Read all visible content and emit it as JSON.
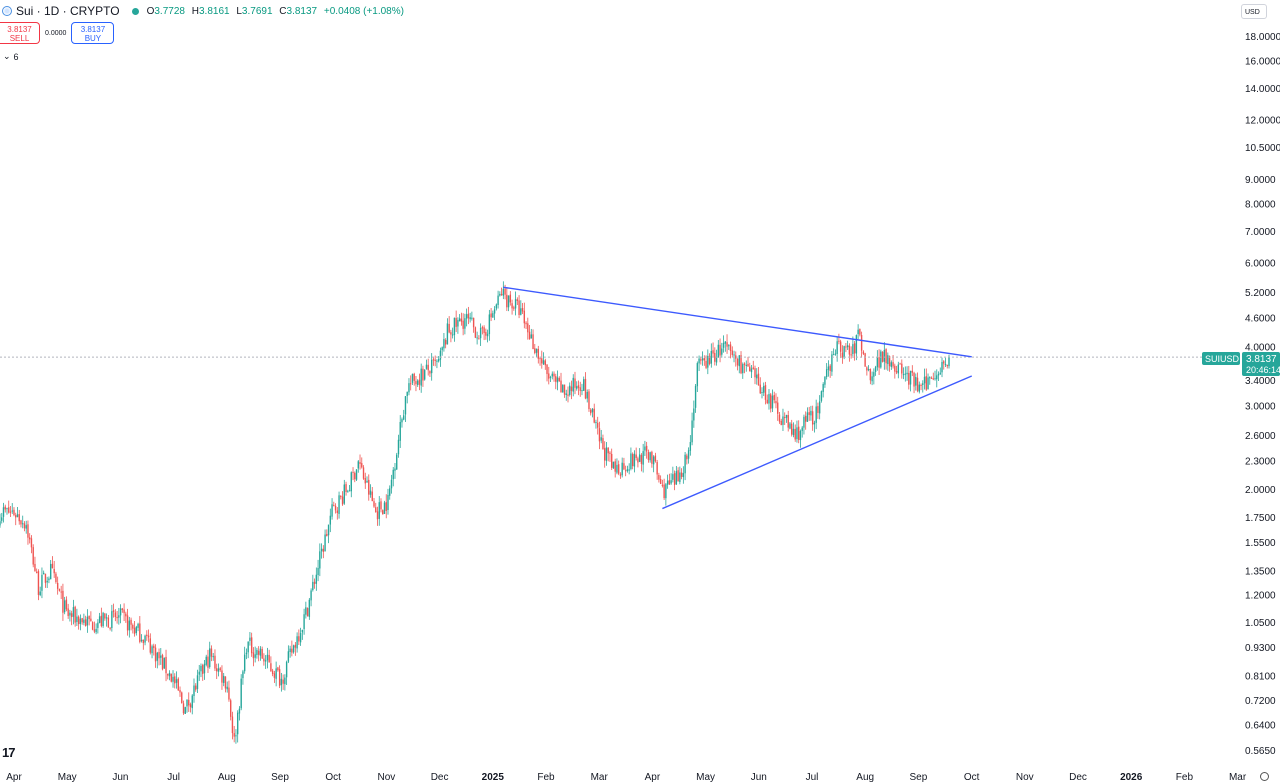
{
  "header": {
    "symbol_title": "Sui · 1D · CRYPTO",
    "ohlc": {
      "o_label": "O",
      "o": "3.7728",
      "h_label": "H",
      "h": "3.8161",
      "l_label": "L",
      "l": "3.7691",
      "c_label": "C",
      "c": "3.8137",
      "change": "+0.0408 (+1.08%)"
    }
  },
  "trade": {
    "sell_price": "3.8137",
    "sell_label": "SELL",
    "spread": "0.0000",
    "buy_price": "3.8137",
    "buy_label": "BUY"
  },
  "indicators_collapse": {
    "chevron": "⌄",
    "count": "6"
  },
  "currency_button": "USD",
  "price_label": {
    "symbol": "SUIUSD",
    "price": "3.8137",
    "countdown": "20:46:14"
  },
  "logo_text": "17",
  "icons": {
    "symbol": "sui-coin-icon",
    "status": "market-open-dot-icon",
    "settings": "chart-settings-icon",
    "logo": "tradingview-logo-icon"
  },
  "colors": {
    "up": "#26a69a",
    "down": "#ef5350",
    "trendline": "#3d5afe",
    "price_line": "#b2b5be",
    "price_label_bg": "#26a69a"
  },
  "chart_data": {
    "type": "candlestick",
    "symbol": "SUIUSD",
    "interval": "1D",
    "y_scale": "log",
    "y_ticks": [
      "18.0000",
      "16.0000",
      "14.0000",
      "12.0000",
      "10.5000",
      "9.0000",
      "8.0000",
      "7.0000",
      "6.0000",
      "5.2000",
      "4.6000",
      "4.0000",
      "3.4000",
      "3.0000",
      "2.6000",
      "2.3000",
      "2.0000",
      "1.7500",
      "1.5500",
      "1.3500",
      "1.2000",
      "1.0500",
      "0.9300",
      "0.8100",
      "0.7200",
      "0.6400",
      "0.5650"
    ],
    "x_ticks": [
      {
        "label": "Apr",
        "bold": false
      },
      {
        "label": "May",
        "bold": false
      },
      {
        "label": "Jun",
        "bold": false
      },
      {
        "label": "Jul",
        "bold": false
      },
      {
        "label": "Aug",
        "bold": false
      },
      {
        "label": "Sep",
        "bold": false
      },
      {
        "label": "Oct",
        "bold": false
      },
      {
        "label": "Nov",
        "bold": false
      },
      {
        "label": "Dec",
        "bold": false
      },
      {
        "label": "2025",
        "bold": true
      },
      {
        "label": "Feb",
        "bold": false
      },
      {
        "label": "Mar",
        "bold": false
      },
      {
        "label": "Apr",
        "bold": false
      },
      {
        "label": "May",
        "bold": false
      },
      {
        "label": "Jun",
        "bold": false
      },
      {
        "label": "Jul",
        "bold": false
      },
      {
        "label": "Aug",
        "bold": false
      },
      {
        "label": "Sep",
        "bold": false
      },
      {
        "label": "Oct",
        "bold": false
      },
      {
        "label": "Nov",
        "bold": false
      },
      {
        "label": "Dec",
        "bold": false
      },
      {
        "label": "2026",
        "bold": true
      },
      {
        "label": "Feb",
        "bold": false
      },
      {
        "label": "Mar",
        "bold": false
      }
    ],
    "price_anchors": [
      [
        "2024-04-01",
        1.8
      ],
      [
        "2024-04-08",
        1.7
      ],
      [
        "2024-04-15",
        1.25
      ],
      [
        "2024-04-22",
        1.35
      ],
      [
        "2024-05-01",
        1.1
      ],
      [
        "2024-05-15",
        1.05
      ],
      [
        "2024-06-01",
        1.08
      ],
      [
        "2024-06-15",
        0.98
      ],
      [
        "2024-07-01",
        0.8
      ],
      [
        "2024-07-08",
        0.69
      ],
      [
        "2024-07-22",
        0.9
      ],
      [
        "2024-08-01",
        0.78
      ],
      [
        "2024-08-05",
        0.59
      ],
      [
        "2024-08-12",
        0.95
      ],
      [
        "2024-08-20",
        0.9
      ],
      [
        "2024-09-01",
        0.8
      ],
      [
        "2024-09-15",
        1.1
      ],
      [
        "2024-09-30",
        1.8
      ],
      [
        "2024-10-10",
        2.05
      ],
      [
        "2024-10-15",
        2.3
      ],
      [
        "2024-10-25",
        1.8
      ],
      [
        "2024-11-01",
        1.9
      ],
      [
        "2024-11-12",
        3.3
      ],
      [
        "2024-11-20",
        3.5
      ],
      [
        "2024-11-30",
        3.7
      ],
      [
        "2024-12-05",
        4.3
      ],
      [
        "2024-12-15",
        4.6
      ],
      [
        "2024-12-25",
        4.2
      ],
      [
        "2025-01-05",
        5.2
      ],
      [
        "2025-01-15",
        4.8
      ],
      [
        "2025-01-31",
        3.5
      ],
      [
        "2025-02-10",
        3.2
      ],
      [
        "2025-02-20",
        3.4
      ],
      [
        "2025-03-01",
        2.6
      ],
      [
        "2025-03-10",
        2.2
      ],
      [
        "2025-03-20",
        2.3
      ],
      [
        "2025-03-31",
        2.4
      ],
      [
        "2025-04-07",
        2.0
      ],
      [
        "2025-04-15",
        2.1
      ],
      [
        "2025-04-22",
        2.4
      ],
      [
        "2025-04-27",
        3.6
      ],
      [
        "2025-05-12",
        4.0
      ],
      [
        "2025-05-25",
        3.6
      ],
      [
        "2025-06-05",
        3.2
      ],
      [
        "2025-06-22",
        2.6
      ],
      [
        "2025-06-30",
        2.85
      ],
      [
        "2025-07-05",
        2.9
      ],
      [
        "2025-07-14",
        4.0
      ],
      [
        "2025-07-25",
        3.9
      ],
      [
        "2025-07-28",
        4.3
      ],
      [
        "2025-08-03",
        3.5
      ],
      [
        "2025-08-12",
        3.9
      ],
      [
        "2025-08-20",
        3.6
      ],
      [
        "2025-08-28",
        3.4
      ],
      [
        "2025-09-02",
        3.25
      ],
      [
        "2025-09-10",
        3.55
      ],
      [
        "2025-09-16",
        3.75
      ],
      [
        "2025-09-18",
        3.81
      ]
    ],
    "trendlines": [
      {
        "name": "upper",
        "from": [
          "2025-01-06",
          5.35
        ],
        "to": [
          "2025-10-01",
          3.82
        ]
      },
      {
        "name": "lower",
        "from": [
          "2025-04-07",
          1.83
        ],
        "to": [
          "2025-10-01",
          3.48
        ]
      }
    ],
    "last_price": 3.8137
  }
}
